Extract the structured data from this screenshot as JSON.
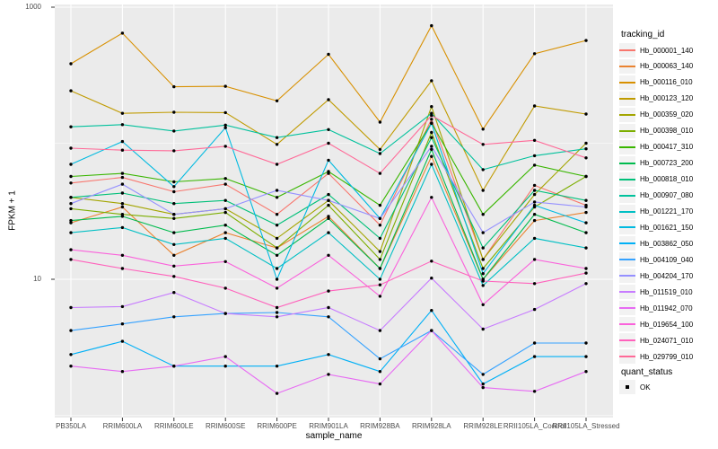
{
  "chart_data": {
    "type": "line",
    "title": "",
    "xlabel": "sample_name",
    "ylabel": "FPKM + 1",
    "y_scale": "log10",
    "ylim": [
      1,
      1000
    ],
    "y_major_ticks": [
      1000,
      10
    ],
    "y_tick_labels": [
      "1000",
      "10"
    ],
    "y_minor_gridlines": [
      100,
      1
    ],
    "grid": true,
    "legend_position": "right",
    "point_color": "#000000",
    "series_legend_title": "tracking_id",
    "shape_legend": {
      "title": "quant_status",
      "items": [
        "OK"
      ]
    },
    "categories": [
      "PB350LA",
      "RRIM600LA",
      "RRIM600LE",
      "RRIM600SE",
      "RRIM600PE",
      "RRIM901LA",
      "RRIM928BA",
      "RRIM928LA",
      "RRIM928LE",
      "RRII105LA_Control",
      "RRII105LA_Stressed"
    ],
    "series": [
      {
        "name": "Hb_000001_140",
        "color": "#F8766D",
        "values": [
          51,
          56,
          44,
          50,
          30,
          60,
          25,
          150,
          14,
          49,
          35
        ]
      },
      {
        "name": "Hb_000063_140",
        "color": "#EA8331",
        "values": [
          26,
          34,
          15,
          22,
          17,
          29,
          12,
          80,
          10,
          27,
          31
        ]
      },
      {
        "name": "Hb_000116_010",
        "color": "#D89000",
        "values": [
          384,
          645,
          260,
          262,
          205,
          450,
          143,
          731,
          127,
          455,
          569
        ]
      },
      {
        "name": "Hb_000123_120",
        "color": "#C09B00",
        "values": [
          243,
          166,
          169,
          168,
          98,
          209,
          90,
          288,
          45,
          188,
          164
        ]
      },
      {
        "name": "Hb_000359_020",
        "color": "#A3A500",
        "values": [
          40,
          36,
          30,
          33,
          20,
          38,
          16,
          186,
          14,
          42,
          100
        ]
      },
      {
        "name": "Hb_000398_010",
        "color": "#7CAE00",
        "values": [
          33,
          30,
          28,
          31,
          17,
          35,
          14,
          120,
          12,
          34,
          57
        ]
      },
      {
        "name": "Hb_000417_310",
        "color": "#39B600",
        "values": [
          57,
          60,
          52,
          55,
          40,
          62,
          35,
          141,
          30,
          69,
          57
        ]
      },
      {
        "name": "Hb_000723_200",
        "color": "#00BB4E",
        "values": [
          27,
          29,
          22,
          25,
          15,
          28,
          12,
          90,
          10,
          30,
          22
        ]
      },
      {
        "name": "Hb_000818_010",
        "color": "#00C079",
        "values": [
          40,
          43,
          36,
          38,
          25,
          42,
          20,
          110,
          17,
          45,
          38
        ]
      },
      {
        "name": "Hb_000907_080",
        "color": "#00C19C",
        "values": [
          132,
          137,
          123,
          136,
          110,
          126,
          84,
          166,
          64,
          81,
          91
        ]
      },
      {
        "name": "Hb_001221_170",
        "color": "#00BFC4",
        "values": [
          22,
          24,
          18,
          20,
          12,
          22,
          10,
          70,
          9,
          20,
          17
        ]
      },
      {
        "name": "Hb_001621_150",
        "color": "#00BAE0",
        "values": [
          70,
          103,
          48,
          130,
          10,
          75,
          28,
          140,
          11,
          35,
          26
        ]
      },
      {
        "name": "Hb_003862_050",
        "color": "#00B0F6",
        "values": [
          2.8,
          3.5,
          2.3,
          2.3,
          2.3,
          2.8,
          2.1,
          5.9,
          1.7,
          2.7,
          2.7
        ]
      },
      {
        "name": "Hb_004109_040",
        "color": "#35A2FF",
        "values": [
          4.2,
          4.7,
          5.3,
          5.6,
          5.7,
          5.3,
          2.6,
          4.2,
          2.0,
          3.4,
          3.4
        ]
      },
      {
        "name": "Hb_004204_170",
        "color": "#9590FF",
        "values": [
          36,
          50,
          30,
          33,
          45,
          38,
          28,
          95,
          22,
          37,
          34
        ]
      },
      {
        "name": "Hb_011519_010",
        "color": "#C77CFF",
        "values": [
          6.2,
          6.3,
          8.0,
          5.6,
          5.3,
          6.2,
          4.2,
          10.2,
          4.3,
          6.0,
          9.3
        ]
      },
      {
        "name": "Hb_011942_070",
        "color": "#E76BF3",
        "values": [
          2.3,
          2.1,
          2.3,
          2.7,
          1.45,
          2.0,
          1.7,
          4.2,
          1.6,
          1.5,
          2.1
        ]
      },
      {
        "name": "Hb_019654_100",
        "color": "#FA62DB",
        "values": [
          16.5,
          15,
          12.5,
          13.5,
          8.6,
          15,
          7.5,
          40,
          6.5,
          14,
          12
        ]
      },
      {
        "name": "Hb_024071_010",
        "color": "#FF62BC",
        "values": [
          14,
          12,
          10.5,
          8.6,
          6.2,
          8.2,
          9.1,
          13.6,
          9.7,
          9.3,
          11.1
        ]
      },
      {
        "name": "Hb_029799_010",
        "color": "#FF6A98",
        "values": [
          92,
          89,
          88,
          95,
          70,
          100,
          60,
          160,
          98,
          105,
          78
        ]
      }
    ]
  },
  "style": {
    "panel_bg": "#EBEBEB",
    "grid_color": "#FFFFFF",
    "legend_key_bg": "#F2F2F2",
    "axis_text_color": "#4D4D4D",
    "tick_color": "#333333"
  }
}
